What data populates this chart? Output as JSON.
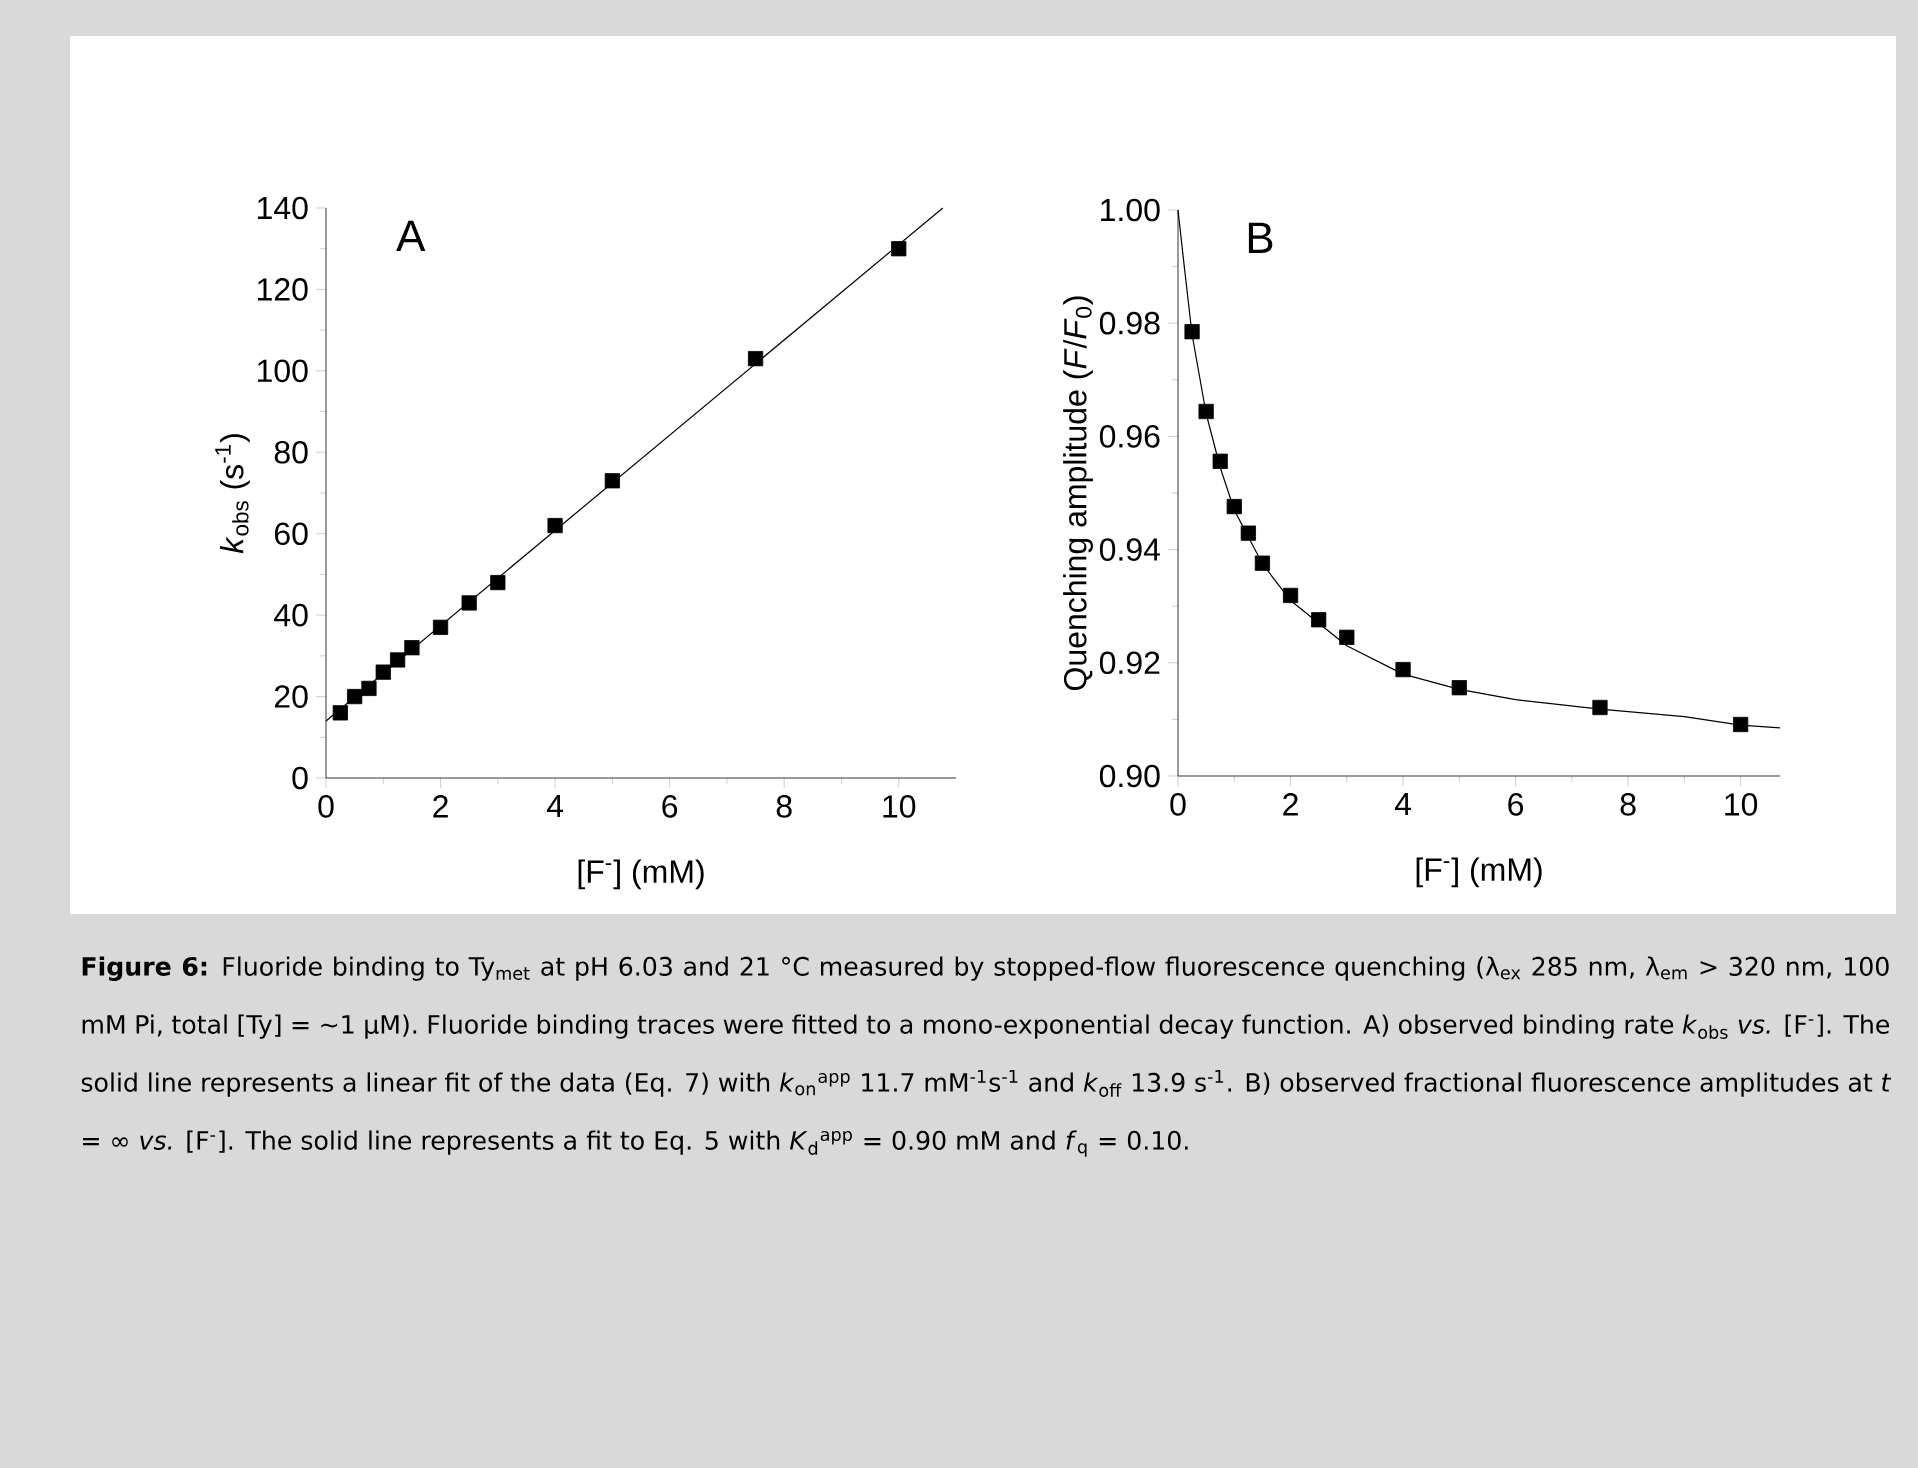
{
  "chart_data": [
    {
      "type": "scatter",
      "xlabel": "[F$^{-}$] (mM)",
      "ylabel": "*k*$_{obs}$ (s$^{-1}$)",
      "marker": "square",
      "annotations": [
        "A",
        "**Figure 6:** Fluoride binding to Ty$_{met}$ at pH 6.03 and 21 °C measured by stopped-flow fluorescence quenching (λ$_{ex}$ 285 nm, λ$_{em}$ > 320 nm, 100 mM Pi, total [Ty] = ~1 µM). Fluoride binding traces were fitted to a mono-exponential decay function. A) observed binding rate *k*$_{obs}$ *vs.* [F$^{-}$]. The solid line represents a linear fit of the data (Eq. 7) with *k*$_{on}$$^{app}$ 11.7 mM$^{-1}$s$^{-1}$ and *k*$_{off}$ 13.9 s$^{-1}$. B) observed fractional fluorescence amplitudes at *t* = ∞ *vs.* [F$^{-}$]. The solid line represents a fit to Eq. 5 with *K*$_{d}$$^{app}$ = 0.90 mM and *f*$_{q}$ = 0.10."
      ],
      "x": [
        0.25,
        0.5,
        0.75,
        1,
        1.25,
        1.5,
        2,
        2.5,
        3,
        4,
        5,
        7.5,
        10
      ],
      "xlim": [
        0,
        11
      ],
      "xticks": [
        0,
        2,
        4,
        6,
        8,
        10
      ],
      "ylim": [
        0,
        140
      ],
      "yticks": [
        0,
        20,
        40,
        60,
        80,
        100,
        120,
        140
      ],
      "series": [
        {
          "color": "#000000",
          "values": [
            16,
            20,
            22,
            26,
            29,
            32,
            37,
            43,
            48,
            62,
            73,
            103,
            130
          ]
        },
        {
          "type": "line",
          "color": "#000000",
          "marker": "none",
          "x": [
            0,
            10.77
          ],
          "values": [
            14,
            140
          ]
        }
      ]
    },
    {
      "type": "scatter",
      "xlabel": "[F$^{-}$] (mM)",
      "ylabel": "Quenching amplitude (*F*/*F*$_{0}$)",
      "marker": "square",
      "annotations": [
        "B"
      ],
      "x": [
        0.25,
        0.5,
        0.75,
        1,
        1.25,
        1.5,
        2,
        2.5,
        3,
        4,
        5,
        7.5,
        10
      ],
      "xlim": [
        0,
        10.7
      ],
      "xticks": [
        0,
        2,
        4,
        6,
        8,
        10
      ],
      "ylim": [
        0.9,
        1.0
      ],
      "yticks": [
        {
          "value": 0.9,
          "label": "0.90"
        },
        0.92,
        0.94,
        0.96,
        0.98,
        {
          "value": 1.0,
          "label": "1.00"
        }
      ],
      "series": [
        {
          "color": "#000000",
          "values": [
            0.9785,
            0.9644,
            0.9556,
            0.9476,
            0.9429,
            0.9376,
            0.9319,
            0.9276,
            0.9245,
            0.9188,
            0.9156,
            0.9121,
            0.9091
          ]
        },
        {
          "type": "line",
          "color": "#000000",
          "marker": "none",
          "x": [
            0,
            0.1,
            0.25,
            0.5,
            0.75,
            1,
            1.5,
            2,
            3,
            4,
            5,
            6,
            7.5,
            9,
            10,
            10.7
          ],
          "values": [
            1.0,
            0.991,
            0.978,
            0.964,
            0.9545,
            0.947,
            0.9375,
            0.931,
            0.923,
            0.918,
            0.9153,
            0.9135,
            0.9118,
            0.9105,
            0.909,
            0.9085
          ]
        }
      ]
    }
  ]
}
